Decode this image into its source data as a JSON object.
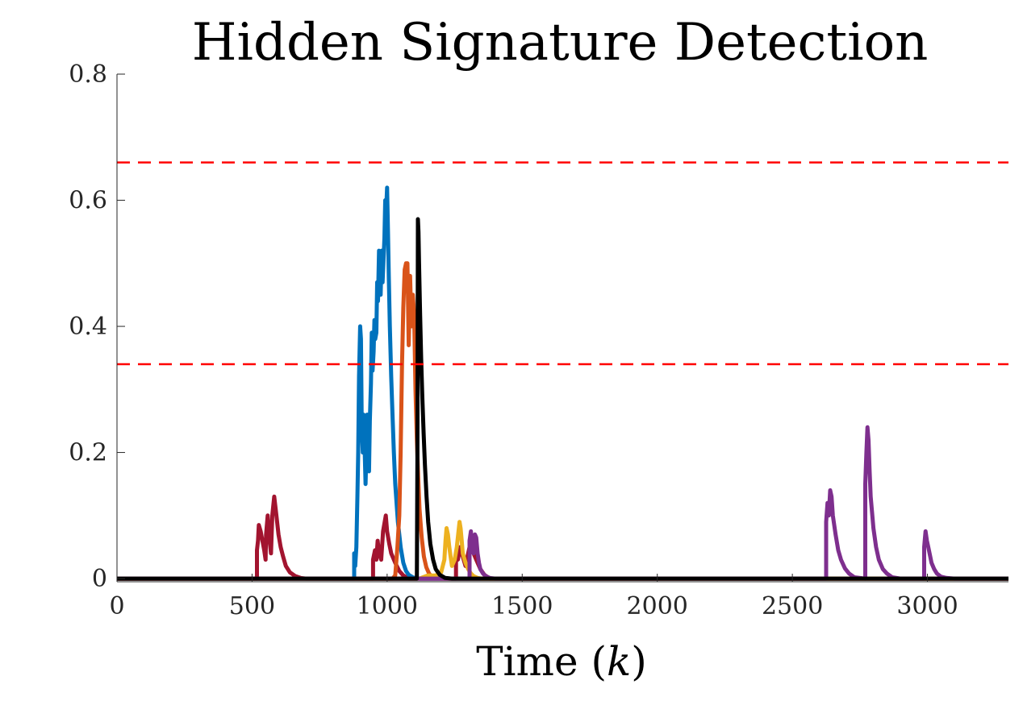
{
  "chart_data": {
    "type": "line",
    "title": "Hidden Signature Detection",
    "xlabel_prefix": "Time (",
    "xlabel_var": "k",
    "xlabel_suffix": ")",
    "ylabel": "",
    "xlim": [
      0,
      3300
    ],
    "ylim": [
      -0.005,
      0.8
    ],
    "xticks": [
      0,
      500,
      1000,
      1500,
      2000,
      2500,
      3000
    ],
    "yticks": [
      0,
      0.2,
      0.4,
      0.6,
      0.8
    ],
    "yticklabels": [
      "0",
      "0.2",
      "0.4",
      "0.6",
      "0.8"
    ],
    "grid": false,
    "legend": "none",
    "thresholds": [
      {
        "value": 0.66,
        "color": "#ff0000",
        "style": "dashed"
      },
      {
        "value": 0.34,
        "color": "#ff0000",
        "style": "dashed"
      }
    ],
    "series": [
      {
        "color": "#A2142F",
        "x": [
          0,
          518,
          518,
          522,
          525,
          532,
          545,
          550,
          552,
          558,
          565,
          570,
          575,
          582,
          590,
          598,
          606,
          615,
          625,
          640,
          660,
          680,
          700,
          3300
        ],
        "y": [
          0,
          0,
          0.045,
          0.06,
          0.085,
          0.075,
          0.045,
          0.03,
          0.07,
          0.1,
          0.06,
          0.04,
          0.1,
          0.13,
          0.1,
          0.07,
          0.05,
          0.035,
          0.02,
          0.01,
          0.004,
          0.001,
          0,
          0
        ]
      },
      {
        "color": "#A2142F",
        "x": [
          0,
          948,
          948,
          955,
          960,
          965,
          970,
          978,
          985,
          995,
          1000,
          1008,
          1015,
          1030,
          1045,
          1060,
          1080,
          3300
        ],
        "y": [
          0,
          0,
          0.03,
          0.045,
          0.03,
          0.06,
          0.04,
          0.03,
          0.075,
          0.1,
          0.075,
          0.055,
          0.04,
          0.025,
          0.012,
          0.005,
          0,
          0
        ]
      },
      {
        "color": "#A2142F",
        "x": [
          0,
          1255,
          1255,
          1262,
          1270,
          1280,
          1290,
          1300,
          1310,
          1320,
          1330,
          1345,
          1360,
          1380,
          3300
        ],
        "y": [
          0,
          0,
          0.04,
          0.03,
          0.05,
          0.035,
          0.02,
          0.04,
          0.06,
          0.04,
          0.03,
          0.015,
          0.006,
          0,
          0
        ]
      },
      {
        "color": "#0072BD",
        "x": [
          0,
          878,
          878,
          882,
          886,
          890,
          893,
          896,
          900,
          903,
          906,
          910,
          913,
          916,
          920,
          923,
          926,
          930,
          933,
          936,
          940,
          943,
          946,
          950,
          953,
          956,
          960,
          963,
          966,
          970,
          973,
          976,
          980,
          983,
          986,
          990,
          993,
          996,
          1000,
          1003,
          1006,
          1010,
          1015,
          1020,
          1025,
          1030,
          1040,
          1050,
          1060,
          1070,
          1080,
          1095,
          1110,
          1130,
          1150,
          3300
        ],
        "y": [
          0,
          0,
          0.04,
          0.02,
          0.05,
          0.13,
          0.2,
          0.32,
          0.4,
          0.38,
          0.24,
          0.2,
          0.26,
          0.22,
          0.15,
          0.2,
          0.26,
          0.24,
          0.17,
          0.25,
          0.31,
          0.39,
          0.33,
          0.36,
          0.41,
          0.38,
          0.39,
          0.47,
          0.44,
          0.52,
          0.49,
          0.45,
          0.52,
          0.47,
          0.5,
          0.54,
          0.6,
          0.58,
          0.62,
          0.55,
          0.48,
          0.4,
          0.32,
          0.26,
          0.2,
          0.15,
          0.09,
          0.05,
          0.025,
          0.012,
          0.006,
          0.002,
          0,
          0,
          0,
          0
        ]
      },
      {
        "color": "#D95319",
        "x": [
          0,
          1020,
          1030,
          1038,
          1045,
          1050,
          1055,
          1060,
          1065,
          1070,
          1075,
          1080,
          1085,
          1090,
          1095,
          1100,
          1105,
          1110,
          1115,
          1120,
          1128,
          1136,
          1145,
          1155,
          1165,
          1180,
          1200,
          3300
        ],
        "y": [
          0,
          0,
          0.005,
          0.05,
          0.1,
          0.2,
          0.34,
          0.43,
          0.49,
          0.5,
          0.5,
          0.37,
          0.48,
          0.4,
          0.45,
          0.42,
          0.3,
          0.22,
          0.16,
          0.11,
          0.065,
          0.035,
          0.018,
          0.008,
          0.003,
          0.001,
          0,
          0
        ]
      },
      {
        "color": "#EDB120",
        "x": [
          0,
          1120,
          1150,
          1180,
          1200,
          1212,
          1216,
          1220,
          1225,
          1230,
          1235,
          1240,
          1250,
          1258,
          1263,
          1268,
          1272,
          1276,
          1280,
          1290,
          1300,
          1310,
          1320,
          1335,
          1350,
          3300
        ],
        "y": [
          0,
          0,
          0.005,
          0.005,
          0.01,
          0.03,
          0.06,
          0.08,
          0.07,
          0.05,
          0.035,
          0.02,
          0.03,
          0.05,
          0.07,
          0.09,
          0.08,
          0.06,
          0.04,
          0.025,
          0.015,
          0.008,
          0.004,
          0.001,
          0,
          0
        ]
      },
      {
        "color": "#7E2F8E",
        "x": [
          0,
          1305,
          1305,
          1310,
          1315,
          1320,
          1325,
          1330,
          1335,
          1340,
          1345,
          1355,
          1365,
          1380,
          1400,
          1420,
          2625,
          2625,
          2630,
          2635,
          2640,
          2645,
          2650,
          2660,
          2670,
          2680,
          2695,
          2710,
          2730,
          2770,
          2770,
          2774,
          2778,
          2782,
          2786,
          2790,
          2800,
          2810,
          2820,
          2835,
          2850,
          2870,
          2900,
          2988,
          2988,
          2993,
          2998,
          3003,
          3008,
          3015,
          3025,
          3035,
          3050,
          3070,
          3100,
          3300
        ],
        "y": [
          0,
          0,
          0.06,
          0.075,
          0.05,
          0.04,
          0.07,
          0.065,
          0.04,
          0.025,
          0.015,
          0.008,
          0.004,
          0.001,
          0,
          0,
          0,
          0.09,
          0.12,
          0.1,
          0.14,
          0.13,
          0.1,
          0.07,
          0.045,
          0.03,
          0.016,
          0.008,
          0.002,
          0,
          0.15,
          0.2,
          0.24,
          0.22,
          0.17,
          0.13,
          0.08,
          0.05,
          0.03,
          0.015,
          0.008,
          0.002,
          0,
          0,
          0.05,
          0.075,
          0.06,
          0.05,
          0.04,
          0.025,
          0.015,
          0.008,
          0.003,
          0.001,
          0,
          0
        ]
      },
      {
        "color": "#000000",
        "x": [
          0,
          1108,
          1110,
          1112,
          1114,
          1116,
          1118,
          1122,
          1126,
          1130,
          1135,
          1140,
          1146,
          1152,
          1160,
          1170,
          1180,
          1195,
          1215,
          1240,
          3300
        ],
        "y": [
          0,
          0,
          0,
          0.2,
          0.57,
          0.55,
          0.5,
          0.42,
          0.35,
          0.29,
          0.23,
          0.18,
          0.13,
          0.09,
          0.055,
          0.03,
          0.015,
          0.006,
          0.001,
          0,
          0
        ]
      }
    ]
  }
}
